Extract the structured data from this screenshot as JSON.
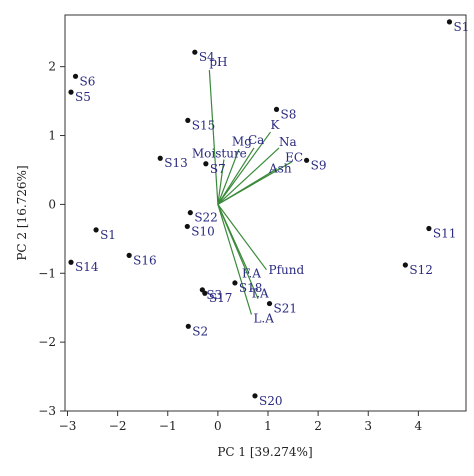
{
  "chart_data": {
    "type": "scatter",
    "subtype": "pca-biplot",
    "title": "",
    "xlabel": "PC 1 [39.274%]",
    "ylabel": "PC 2 [16.726%]",
    "xlim": [
      -3.05,
      4.95
    ],
    "ylim": [
      -3.0,
      2.75
    ],
    "x_ticks": [
      -3,
      -2,
      -1,
      0,
      1,
      2,
      3,
      4
    ],
    "y_ticks": [
      -3,
      -2,
      -1,
      0,
      1,
      2
    ],
    "grid": false,
    "point_color": "#111111",
    "label_color": "#2a2a80",
    "vector_color": "#3a8a3a",
    "samples": [
      {
        "label": "S1",
        "x": 4.62,
        "y": 2.65
      },
      {
        "label": "S1",
        "x": -2.43,
        "y": -0.37
      },
      {
        "label": "S2",
        "x": -0.59,
        "y": -1.77
      },
      {
        "label": "S3",
        "x": -0.31,
        "y": -1.24
      },
      {
        "label": "S4",
        "x": -0.46,
        "y": 2.21
      },
      {
        "label": "S5",
        "x": -2.93,
        "y": 1.63
      },
      {
        "label": "S6",
        "x": -2.84,
        "y": 1.86
      },
      {
        "label": "S7",
        "x": -0.24,
        "y": 0.59
      },
      {
        "label": "S8",
        "x": 1.17,
        "y": 1.38
      },
      {
        "label": "S9",
        "x": 1.77,
        "y": 0.64
      },
      {
        "label": "S10",
        "x": -0.61,
        "y": -0.32
      },
      {
        "label": "S11",
        "x": 4.21,
        "y": -0.35
      },
      {
        "label": "S12",
        "x": 3.74,
        "y": -0.88
      },
      {
        "label": "S13",
        "x": -1.15,
        "y": 0.67
      },
      {
        "label": "S14",
        "x": -2.93,
        "y": -0.84
      },
      {
        "label": "S15",
        "x": -0.6,
        "y": 1.22
      },
      {
        "label": "S16",
        "x": -1.77,
        "y": -0.74
      },
      {
        "label": "S17",
        "x": -0.26,
        "y": -1.29
      },
      {
        "label": "S18",
        "x": 0.34,
        "y": -1.14
      },
      {
        "label": "S20",
        "x": 0.74,
        "y": -2.78
      },
      {
        "label": "S21",
        "x": 1.03,
        "y": -1.44
      },
      {
        "label": "S22",
        "x": -0.55,
        "y": -0.12
      }
    ],
    "loadings": [
      {
        "label": "pH",
        "x": -0.17,
        "y": 1.95
      },
      {
        "label": "K",
        "x": 1.05,
        "y": 1.05
      },
      {
        "label": "Mg",
        "x": 0.42,
        "y": 0.8
      },
      {
        "label": "Ca",
        "x": 0.72,
        "y": 0.82
      },
      {
        "label": "Na",
        "x": 1.22,
        "y": 0.82
      },
      {
        "label": "EC",
        "x": 1.48,
        "y": 0.62
      },
      {
        "label": "Ash",
        "x": 1.18,
        "y": 0.52
      },
      {
        "label": "Moisture",
        "x": 0.12,
        "y": 0.65
      },
      {
        "label": "Pfund",
        "x": 0.97,
        "y": -0.95
      },
      {
        "label": "F.A",
        "x": 0.62,
        "y": -1.0
      },
      {
        "label": "T.A",
        "x": 0.8,
        "y": -1.37
      },
      {
        "label": "L.A",
        "x": 0.67,
        "y": -1.6
      }
    ]
  }
}
